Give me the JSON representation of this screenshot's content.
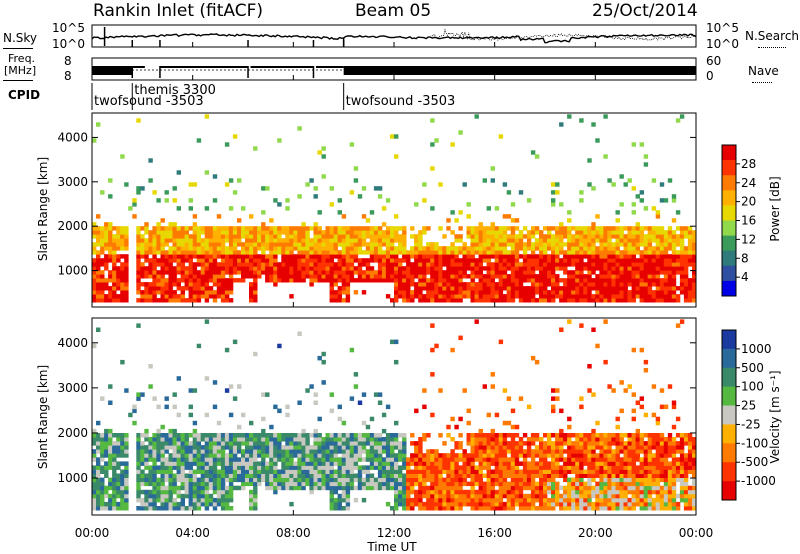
{
  "header": {
    "radar": "Rankin Inlet (fitACF)",
    "beam": "Beam 05",
    "date": "25/Oct/2014"
  },
  "top_labels": {
    "nsky": "N.Sky",
    "freq_line1": "Freq.",
    "freq_line2": "[MHz]",
    "cpid": "CPID",
    "nsearch": "N.Search",
    "nave": "Nave",
    "left_ticks": [
      "10^5",
      "10^0",
      "8",
      "8"
    ],
    "right_ticks": [
      "10^5",
      "10^0",
      "60",
      "0"
    ]
  },
  "cpid_segments": [
    {
      "label": "twofsound -3503",
      "start_hour": 0.0
    },
    {
      "label": "themis 3300",
      "start_hour": 1.6
    },
    {
      "label": "twofsound -3503",
      "start_hour": 10.0
    }
  ],
  "chart_data": [
    {
      "type": "heatmap",
      "name": "power",
      "ylabel": "Slant Range [km]",
      "xlabel": "",
      "xlim_hours": [
        0,
        24
      ],
      "ylim": [
        180,
        4550
      ],
      "yticks": [
        1000,
        2000,
        3000,
        4000
      ],
      "colorbar": {
        "label": "Power [dB]",
        "ticks": [
          "28",
          "24",
          "20",
          "16",
          "12",
          "8",
          "4"
        ],
        "colors": [
          "#e60000",
          "#ff3300",
          "#ff7a00",
          "#ffb000",
          "#e6d800",
          "#8fd94a",
          "#3a9a5a",
          "#2f7a7a",
          "#2f4fa0",
          "#0000e6"
        ]
      }
    },
    {
      "type": "heatmap",
      "name": "velocity",
      "ylabel": "Slant Range [km]",
      "xlabel": "Time UT",
      "xlim_hours": [
        0,
        24
      ],
      "ylim": [
        180,
        4550
      ],
      "yticks": [
        1000,
        2000,
        3000,
        4000
      ],
      "xticks": [
        "00:00",
        "04:00",
        "08:00",
        "12:00",
        "16:00",
        "20:00",
        "00:00"
      ],
      "colorbar": {
        "label": "Velocity [m s⁻¹]",
        "ticks": [
          "1000",
          "500",
          "100",
          "25",
          "-25",
          "-100",
          "-500",
          "-1000"
        ],
        "colors": [
          "#1a3aa0",
          "#2a6a9a",
          "#3a8a6a",
          "#55b840",
          "#c8c8c0",
          "#ffb000",
          "#ff7a00",
          "#ff3300",
          "#e60000"
        ]
      }
    }
  ]
}
